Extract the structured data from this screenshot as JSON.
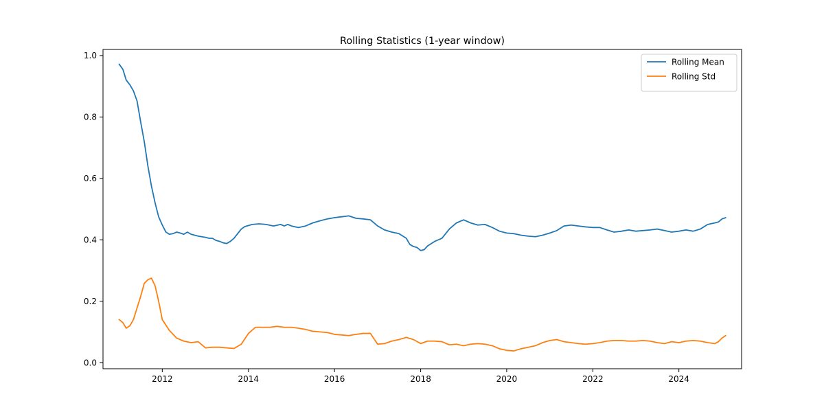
{
  "chart_data": {
    "type": "line",
    "title": "Rolling Statistics (1-year window)",
    "xlabel": "",
    "ylabel": "",
    "x_axis_type": "date",
    "xlim": [
      "2010-08-16",
      "2025-06-16"
    ],
    "ylim": [
      -0.02,
      1.02
    ],
    "x_ticks": [
      "2012",
      "2014",
      "2016",
      "2018",
      "2020",
      "2022",
      "2024"
    ],
    "y_ticks": [
      "0.0",
      "0.2",
      "0.4",
      "0.6",
      "0.8",
      "1.0"
    ],
    "grid": false,
    "legend": {
      "placement": "top-right"
    },
    "series": [
      {
        "name": "Rolling Mean",
        "color": "#1f77b4",
        "points": [
          [
            "2010-12-31",
            0.972
          ],
          [
            "2011-02-01",
            0.955
          ],
          [
            "2011-03-01",
            0.92
          ],
          [
            "2011-04-01",
            0.905
          ],
          [
            "2011-05-01",
            0.885
          ],
          [
            "2011-06-01",
            0.852
          ],
          [
            "2011-07-01",
            0.785
          ],
          [
            "2011-08-01",
            0.72
          ],
          [
            "2011-09-01",
            0.64
          ],
          [
            "2011-10-01",
            0.575
          ],
          [
            "2011-11-01",
            0.52
          ],
          [
            "2011-12-01",
            0.475
          ],
          [
            "2012-01-01",
            0.448
          ],
          [
            "2012-02-01",
            0.425
          ],
          [
            "2012-03-01",
            0.418
          ],
          [
            "2012-04-01",
            0.42
          ],
          [
            "2012-05-01",
            0.425
          ],
          [
            "2012-06-01",
            0.422
          ],
          [
            "2012-07-01",
            0.418
          ],
          [
            "2012-08-01",
            0.425
          ],
          [
            "2012-09-01",
            0.418
          ],
          [
            "2012-10-01",
            0.415
          ],
          [
            "2012-11-01",
            0.412
          ],
          [
            "2012-12-01",
            0.41
          ],
          [
            "2013-01-01",
            0.408
          ],
          [
            "2013-02-01",
            0.405
          ],
          [
            "2013-03-01",
            0.405
          ],
          [
            "2013-04-01",
            0.398
          ],
          [
            "2013-05-01",
            0.395
          ],
          [
            "2013-06-01",
            0.39
          ],
          [
            "2013-07-01",
            0.388
          ],
          [
            "2013-08-01",
            0.395
          ],
          [
            "2013-09-01",
            0.405
          ],
          [
            "2013-10-01",
            0.42
          ],
          [
            "2013-11-01",
            0.435
          ],
          [
            "2013-12-01",
            0.443
          ],
          [
            "2014-02-01",
            0.45
          ],
          [
            "2014-04-01",
            0.452
          ],
          [
            "2014-06-01",
            0.45
          ],
          [
            "2014-08-01",
            0.445
          ],
          [
            "2014-10-01",
            0.45
          ],
          [
            "2014-11-01",
            0.445
          ],
          [
            "2014-12-01",
            0.45
          ],
          [
            "2015-01-01",
            0.445
          ],
          [
            "2015-03-01",
            0.44
          ],
          [
            "2015-05-01",
            0.445
          ],
          [
            "2015-07-01",
            0.455
          ],
          [
            "2015-09-01",
            0.462
          ],
          [
            "2015-11-01",
            0.468
          ],
          [
            "2016-01-01",
            0.472
          ],
          [
            "2016-03-01",
            0.475
          ],
          [
            "2016-05-01",
            0.478
          ],
          [
            "2016-07-01",
            0.47
          ],
          [
            "2016-09-01",
            0.468
          ],
          [
            "2016-11-01",
            0.465
          ],
          [
            "2017-01-01",
            0.445
          ],
          [
            "2017-03-01",
            0.432
          ],
          [
            "2017-05-01",
            0.425
          ],
          [
            "2017-07-01",
            0.42
          ],
          [
            "2017-09-01",
            0.405
          ],
          [
            "2017-10-01",
            0.385
          ],
          [
            "2017-11-01",
            0.378
          ],
          [
            "2017-12-01",
            0.375
          ],
          [
            "2018-01-01",
            0.365
          ],
          [
            "2018-02-01",
            0.368
          ],
          [
            "2018-03-01",
            0.38
          ],
          [
            "2018-05-01",
            0.395
          ],
          [
            "2018-07-01",
            0.405
          ],
          [
            "2018-09-01",
            0.435
          ],
          [
            "2018-11-01",
            0.455
          ],
          [
            "2019-01-01",
            0.465
          ],
          [
            "2019-03-01",
            0.455
          ],
          [
            "2019-05-01",
            0.448
          ],
          [
            "2019-07-01",
            0.45
          ],
          [
            "2019-09-01",
            0.44
          ],
          [
            "2019-11-01",
            0.428
          ],
          [
            "2020-01-01",
            0.422
          ],
          [
            "2020-03-01",
            0.42
          ],
          [
            "2020-05-01",
            0.415
          ],
          [
            "2020-07-01",
            0.412
          ],
          [
            "2020-09-01",
            0.41
          ],
          [
            "2020-11-01",
            0.415
          ],
          [
            "2021-01-01",
            0.422
          ],
          [
            "2021-03-01",
            0.43
          ],
          [
            "2021-05-01",
            0.445
          ],
          [
            "2021-07-01",
            0.448
          ],
          [
            "2021-09-01",
            0.445
          ],
          [
            "2021-11-01",
            0.442
          ],
          [
            "2022-01-01",
            0.44
          ],
          [
            "2022-03-01",
            0.44
          ],
          [
            "2022-05-01",
            0.432
          ],
          [
            "2022-07-01",
            0.425
          ],
          [
            "2022-09-01",
            0.428
          ],
          [
            "2022-11-01",
            0.432
          ],
          [
            "2023-01-01",
            0.428
          ],
          [
            "2023-03-01",
            0.43
          ],
          [
            "2023-05-01",
            0.432
          ],
          [
            "2023-07-01",
            0.435
          ],
          [
            "2023-09-01",
            0.43
          ],
          [
            "2023-11-01",
            0.425
          ],
          [
            "2024-01-01",
            0.428
          ],
          [
            "2024-03-01",
            0.432
          ],
          [
            "2024-05-01",
            0.428
          ],
          [
            "2024-07-01",
            0.435
          ],
          [
            "2024-09-01",
            0.45
          ],
          [
            "2024-11-01",
            0.455
          ],
          [
            "2024-12-01",
            0.458
          ],
          [
            "2025-01-01",
            0.468
          ],
          [
            "2025-02-01",
            0.472
          ]
        ]
      },
      {
        "name": "Rolling Std",
        "color": "#ff7f0e",
        "points": [
          [
            "2010-12-31",
            0.14
          ],
          [
            "2011-02-01",
            0.13
          ],
          [
            "2011-03-01",
            0.112
          ],
          [
            "2011-04-01",
            0.12
          ],
          [
            "2011-05-01",
            0.14
          ],
          [
            "2011-06-01",
            0.178
          ],
          [
            "2011-07-01",
            0.215
          ],
          [
            "2011-08-01",
            0.258
          ],
          [
            "2011-09-01",
            0.27
          ],
          [
            "2011-10-01",
            0.275
          ],
          [
            "2011-11-01",
            0.25
          ],
          [
            "2011-12-01",
            0.2
          ],
          [
            "2012-01-01",
            0.14
          ],
          [
            "2012-03-01",
            0.105
          ],
          [
            "2012-05-01",
            0.08
          ],
          [
            "2012-07-01",
            0.07
          ],
          [
            "2012-09-01",
            0.065
          ],
          [
            "2012-11-01",
            0.068
          ],
          [
            "2013-01-01",
            0.048
          ],
          [
            "2013-03-01",
            0.05
          ],
          [
            "2013-05-01",
            0.05
          ],
          [
            "2013-07-01",
            0.048
          ],
          [
            "2013-09-01",
            0.046
          ],
          [
            "2013-11-01",
            0.06
          ],
          [
            "2014-01-01",
            0.095
          ],
          [
            "2014-03-01",
            0.115
          ],
          [
            "2014-05-01",
            0.115
          ],
          [
            "2014-07-01",
            0.115
          ],
          [
            "2014-09-01",
            0.118
          ],
          [
            "2014-11-01",
            0.115
          ],
          [
            "2015-01-01",
            0.115
          ],
          [
            "2015-03-01",
            0.112
          ],
          [
            "2015-05-01",
            0.108
          ],
          [
            "2015-07-01",
            0.102
          ],
          [
            "2015-09-01",
            0.1
          ],
          [
            "2015-11-01",
            0.098
          ],
          [
            "2016-01-01",
            0.092
          ],
          [
            "2016-03-01",
            0.09
          ],
          [
            "2016-05-01",
            0.088
          ],
          [
            "2016-07-01",
            0.092
          ],
          [
            "2016-09-01",
            0.095
          ],
          [
            "2016-11-01",
            0.095
          ],
          [
            "2017-01-01",
            0.06
          ],
          [
            "2017-03-01",
            0.062
          ],
          [
            "2017-05-01",
            0.07
          ],
          [
            "2017-07-01",
            0.075
          ],
          [
            "2017-09-01",
            0.082
          ],
          [
            "2017-11-01",
            0.075
          ],
          [
            "2018-01-01",
            0.062
          ],
          [
            "2018-03-01",
            0.07
          ],
          [
            "2018-05-01",
            0.07
          ],
          [
            "2018-07-01",
            0.068
          ],
          [
            "2018-09-01",
            0.058
          ],
          [
            "2018-11-01",
            0.06
          ],
          [
            "2019-01-01",
            0.055
          ],
          [
            "2019-03-01",
            0.06
          ],
          [
            "2019-05-01",
            0.062
          ],
          [
            "2019-07-01",
            0.06
          ],
          [
            "2019-09-01",
            0.055
          ],
          [
            "2019-11-01",
            0.045
          ],
          [
            "2020-01-01",
            0.04
          ],
          [
            "2020-03-01",
            0.038
          ],
          [
            "2020-05-01",
            0.045
          ],
          [
            "2020-07-01",
            0.05
          ],
          [
            "2020-09-01",
            0.055
          ],
          [
            "2020-11-01",
            0.065
          ],
          [
            "2021-01-01",
            0.072
          ],
          [
            "2021-03-01",
            0.075
          ],
          [
            "2021-05-01",
            0.068
          ],
          [
            "2021-07-01",
            0.065
          ],
          [
            "2021-09-01",
            0.062
          ],
          [
            "2021-11-01",
            0.06
          ],
          [
            "2022-01-01",
            0.062
          ],
          [
            "2022-03-01",
            0.065
          ],
          [
            "2022-05-01",
            0.07
          ],
          [
            "2022-07-01",
            0.072
          ],
          [
            "2022-09-01",
            0.072
          ],
          [
            "2022-11-01",
            0.07
          ],
          [
            "2023-01-01",
            0.07
          ],
          [
            "2023-03-01",
            0.072
          ],
          [
            "2023-05-01",
            0.07
          ],
          [
            "2023-07-01",
            0.065
          ],
          [
            "2023-09-01",
            0.062
          ],
          [
            "2023-11-01",
            0.068
          ],
          [
            "2024-01-01",
            0.065
          ],
          [
            "2024-03-01",
            0.07
          ],
          [
            "2024-05-01",
            0.072
          ],
          [
            "2024-07-01",
            0.07
          ],
          [
            "2024-09-01",
            0.065
          ],
          [
            "2024-11-01",
            0.062
          ],
          [
            "2024-12-01",
            0.068
          ],
          [
            "2025-01-01",
            0.08
          ],
          [
            "2025-02-01",
            0.088
          ]
        ]
      }
    ]
  }
}
